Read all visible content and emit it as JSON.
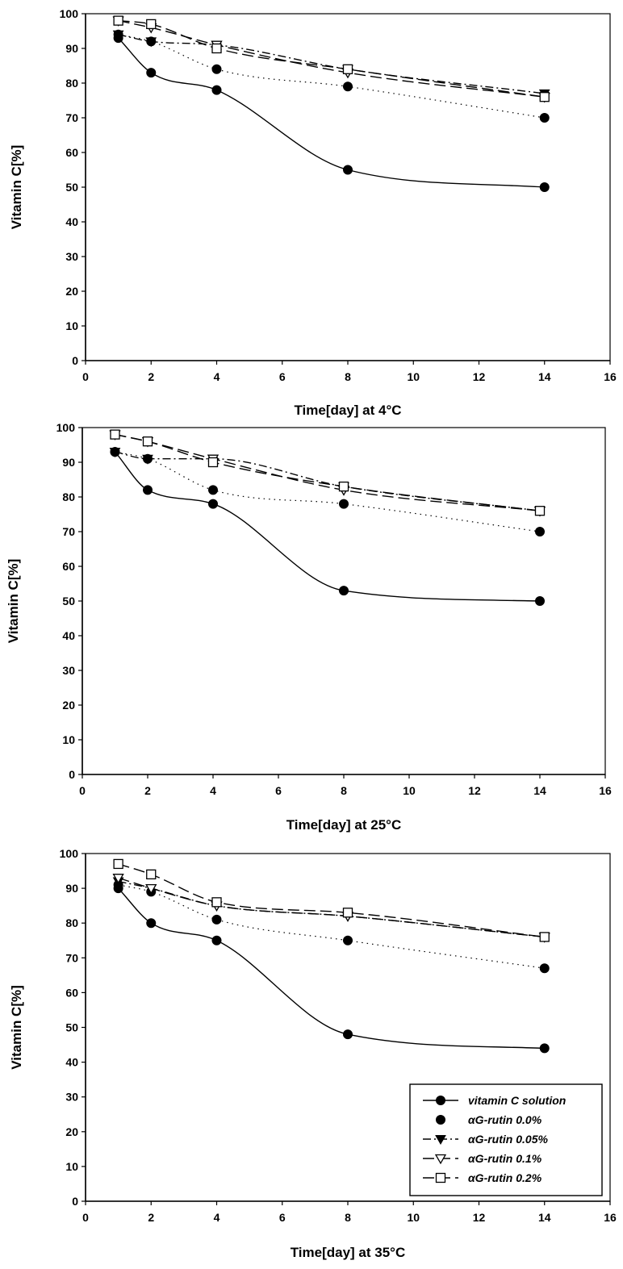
{
  "chart_data": [
    {
      "type": "line",
      "xlabel": "Time[day] at 4°C",
      "ylabel": "Vitamin C[%]",
      "xlim": [
        0,
        16
      ],
      "ylim": [
        0,
        100
      ],
      "xticks": [
        0,
        2,
        4,
        6,
        8,
        10,
        12,
        14,
        16
      ],
      "yticks": [
        0,
        10,
        20,
        30,
        40,
        50,
        60,
        70,
        80,
        90,
        100
      ],
      "grid": false,
      "x": [
        1,
        2,
        4,
        8,
        14
      ],
      "series": [
        {
          "name": "vitamin C solution",
          "values": [
            93,
            83,
            78,
            55,
            50
          ]
        },
        {
          "name": "αG-rutin 0.0%",
          "values": [
            94,
            92,
            84,
            79,
            70
          ]
        },
        {
          "name": "αG-rutin 0.05%",
          "values": [
            94,
            92,
            91,
            84,
            77
          ]
        },
        {
          "name": "αG-rutin 0.1%",
          "values": [
            98,
            96,
            91,
            83,
            76
          ]
        },
        {
          "name": "αG-rutin 0.2%",
          "values": [
            98,
            97,
            90,
            84,
            76
          ]
        }
      ]
    },
    {
      "type": "line",
      "xlabel": "Time[day] at 25°C",
      "ylabel": "Vitamin C[%]",
      "xlim": [
        0,
        16
      ],
      "ylim": [
        0,
        100
      ],
      "xticks": [
        0,
        2,
        4,
        6,
        8,
        10,
        12,
        14,
        16
      ],
      "yticks": [
        0,
        10,
        20,
        30,
        40,
        50,
        60,
        70,
        80,
        90,
        100
      ],
      "grid": false,
      "x": [
        1,
        2,
        4,
        8,
        14
      ],
      "series": [
        {
          "name": "vitamin C solution",
          "values": [
            93,
            82,
            78,
            53,
            50
          ]
        },
        {
          "name": "αG-rutin 0.0%",
          "values": [
            93,
            91,
            82,
            78,
            70
          ]
        },
        {
          "name": "αG-rutin 0.05%",
          "values": [
            93,
            91,
            91,
            83,
            76
          ]
        },
        {
          "name": "αG-rutin 0.1%",
          "values": [
            98,
            96,
            91,
            82,
            76
          ]
        },
        {
          "name": "αG-rutin 0.2%",
          "values": [
            98,
            96,
            90,
            83,
            76
          ]
        }
      ]
    },
    {
      "type": "line",
      "xlabel": "Time[day] at 35°C",
      "ylabel": "Vitamin C[%]",
      "xlim": [
        0,
        16
      ],
      "ylim": [
        0,
        100
      ],
      "xticks": [
        0,
        2,
        4,
        6,
        8,
        10,
        12,
        14,
        16
      ],
      "yticks": [
        0,
        10,
        20,
        30,
        40,
        50,
        60,
        70,
        80,
        90,
        100
      ],
      "grid": false,
      "legend": "bottom-right",
      "x": [
        1,
        2,
        4,
        8,
        14
      ],
      "series": [
        {
          "name": "vitamin C solution",
          "values": [
            90,
            80,
            75,
            48,
            44
          ]
        },
        {
          "name": "αG-rutin 0.0%",
          "values": [
            91,
            89,
            81,
            75,
            67
          ]
        },
        {
          "name": "αG-rutin 0.05%",
          "values": [
            92,
            90,
            85,
            82,
            76
          ]
        },
        {
          "name": "αG-rutin 0.1%",
          "values": [
            93,
            90,
            85,
            82,
            76
          ]
        },
        {
          "name": "αG-rutin 0.2%",
          "values": [
            97,
            94,
            86,
            83,
            76
          ]
        }
      ]
    }
  ],
  "style": {
    "series_markers": [
      "filled-circle",
      "filled-circle",
      "filled-triangle-down",
      "open-triangle-down",
      "open-square"
    ],
    "series_dash": [
      "solid",
      "dotted",
      "dashdot",
      "longdash",
      "longdash"
    ],
    "ink": "#000000",
    "background": "#ffffff"
  }
}
